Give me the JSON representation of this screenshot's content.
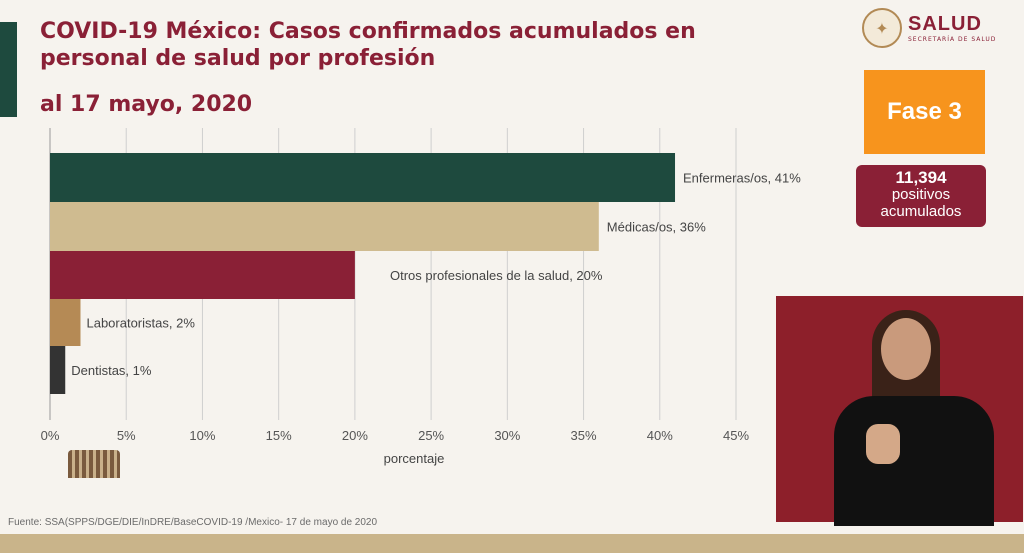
{
  "header": {
    "title": "COVID-19 México: Casos confirmados acumulados en personal de salud por profesión",
    "subtitle": "al 17 mayo, 2020"
  },
  "logo": {
    "name": "SALUD",
    "sub": "SECRETARÍA DE SALUD"
  },
  "phase": {
    "label": "Fase 3"
  },
  "positives": {
    "count": "11,394",
    "line1": "positivos",
    "line2": "acumulados"
  },
  "footer": {
    "source": "Fuente: SSA(SPPS/DGE/DIE/InDRE/BaseCOVID-19 /Mexico- 17 de mayo de 2020"
  },
  "colors": {
    "title": "#8a2036",
    "accent": "#1e4a3e",
    "phase": "#f7941d"
  },
  "chart_data": {
    "type": "bar",
    "orientation": "horizontal",
    "categories": [
      "Enfermeras/os",
      "Médicas/os",
      "Otros profesionales de la salud",
      "Laboratoristas",
      "Dentistas"
    ],
    "values": [
      41,
      36,
      20,
      2,
      1
    ],
    "data_labels": [
      "Enfermeras/os, 41%",
      "Médicas/os, 36%",
      "Otros profesionales de la salud, 20%",
      "Laboratoristas, 2%",
      "Dentistas, 1%"
    ],
    "colors": [
      "#1e4a3e",
      "#cfbb90",
      "#8a2036",
      "#b58a55",
      "#333333"
    ],
    "xlabel": "porcentaje",
    "xlim": [
      0,
      45
    ],
    "xticks": [
      "0%",
      "5%",
      "10%",
      "15%",
      "20%",
      "25%",
      "30%",
      "35%",
      "40%",
      "45%"
    ],
    "grid": true
  }
}
